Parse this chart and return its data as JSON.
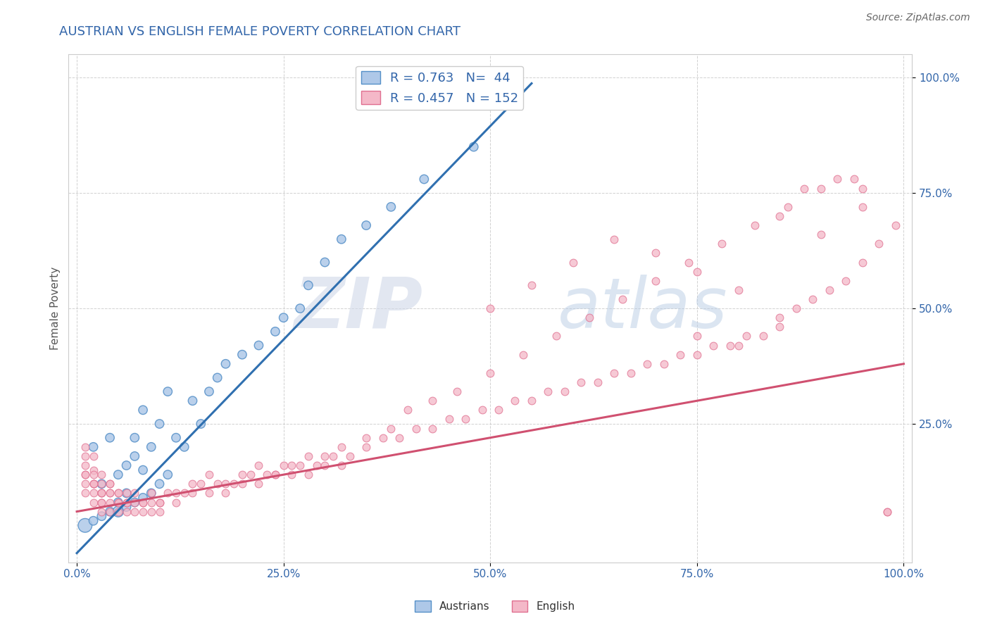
{
  "title": "AUSTRIAN VS ENGLISH FEMALE POVERTY CORRELATION CHART",
  "source_text": "Source: ZipAtlas.com",
  "ylabel": "Female Poverty",
  "watermark": "ZIPatlas",
  "legend_austrians": "Austrians",
  "legend_english": "English",
  "r_austrians": 0.763,
  "n_austrians": 44,
  "r_english": 0.457,
  "n_english": 152,
  "blue_fill": "#aec8e8",
  "blue_edge": "#5590c8",
  "pink_fill": "#f4b8c8",
  "pink_edge": "#e07090",
  "blue_line_color": "#3070b0",
  "pink_line_color": "#d05070",
  "title_color": "#3366aa",
  "source_color": "#666666",
  "axis_label_color": "#555555",
  "tick_color": "#3366aa",
  "background_color": "#ffffff",
  "grid_color": "#cccccc",
  "austrians_x": [
    0.01,
    0.02,
    0.02,
    0.03,
    0.03,
    0.04,
    0.04,
    0.05,
    0.05,
    0.05,
    0.06,
    0.06,
    0.06,
    0.07,
    0.07,
    0.07,
    0.08,
    0.08,
    0.08,
    0.09,
    0.09,
    0.1,
    0.1,
    0.11,
    0.11,
    0.12,
    0.13,
    0.14,
    0.15,
    0.16,
    0.17,
    0.18,
    0.2,
    0.22,
    0.24,
    0.25,
    0.27,
    0.28,
    0.3,
    0.32,
    0.35,
    0.38,
    0.42,
    0.48
  ],
  "austrians_y": [
    0.03,
    0.04,
    0.2,
    0.05,
    0.12,
    0.06,
    0.22,
    0.06,
    0.14,
    0.08,
    0.07,
    0.16,
    0.1,
    0.08,
    0.18,
    0.22,
    0.09,
    0.15,
    0.28,
    0.1,
    0.2,
    0.12,
    0.25,
    0.14,
    0.32,
    0.22,
    0.2,
    0.3,
    0.25,
    0.32,
    0.35,
    0.38,
    0.4,
    0.42,
    0.45,
    0.48,
    0.5,
    0.55,
    0.6,
    0.65,
    0.68,
    0.72,
    0.78,
    0.85
  ],
  "austrians_sizes": [
    200,
    80,
    80,
    80,
    80,
    80,
    80,
    120,
    80,
    80,
    80,
    80,
    80,
    80,
    80,
    80,
    80,
    80,
    80,
    80,
    80,
    80,
    80,
    80,
    80,
    80,
    80,
    80,
    80,
    80,
    80,
    80,
    80,
    80,
    80,
    80,
    80,
    80,
    80,
    80,
    80,
    80,
    80,
    80
  ],
  "english_x": [
    0.01,
    0.01,
    0.01,
    0.01,
    0.01,
    0.01,
    0.02,
    0.02,
    0.02,
    0.02,
    0.02,
    0.02,
    0.02,
    0.03,
    0.03,
    0.03,
    0.03,
    0.03,
    0.03,
    0.03,
    0.04,
    0.04,
    0.04,
    0.04,
    0.04,
    0.05,
    0.05,
    0.05,
    0.05,
    0.06,
    0.06,
    0.06,
    0.07,
    0.07,
    0.08,
    0.08,
    0.09,
    0.09,
    0.1,
    0.1,
    0.11,
    0.12,
    0.13,
    0.14,
    0.15,
    0.16,
    0.17,
    0.18,
    0.19,
    0.2,
    0.21,
    0.22,
    0.23,
    0.24,
    0.25,
    0.26,
    0.27,
    0.28,
    0.29,
    0.3,
    0.31,
    0.32,
    0.33,
    0.35,
    0.37,
    0.39,
    0.41,
    0.43,
    0.45,
    0.47,
    0.49,
    0.51,
    0.53,
    0.55,
    0.57,
    0.59,
    0.61,
    0.63,
    0.65,
    0.67,
    0.69,
    0.71,
    0.73,
    0.75,
    0.77,
    0.79,
    0.81,
    0.83,
    0.85,
    0.87,
    0.89,
    0.91,
    0.93,
    0.95,
    0.97,
    0.99,
    0.01,
    0.02,
    0.03,
    0.04,
    0.05,
    0.06,
    0.07,
    0.08,
    0.09,
    0.1,
    0.12,
    0.14,
    0.16,
    0.18,
    0.2,
    0.22,
    0.24,
    0.26,
    0.28,
    0.3,
    0.32,
    0.35,
    0.38,
    0.4,
    0.43,
    0.46,
    0.5,
    0.54,
    0.58,
    0.62,
    0.66,
    0.7,
    0.74,
    0.78,
    0.82,
    0.86,
    0.9,
    0.94,
    0.98,
    0.5,
    0.55,
    0.6,
    0.65,
    0.7,
    0.75,
    0.8,
    0.85,
    0.9,
    0.95,
    0.88,
    0.92,
    0.95,
    0.98,
    0.8,
    0.85,
    0.75
  ],
  "english_y": [
    0.18,
    0.2,
    0.12,
    0.14,
    0.16,
    0.1,
    0.15,
    0.12,
    0.18,
    0.1,
    0.14,
    0.08,
    0.12,
    0.1,
    0.14,
    0.08,
    0.12,
    0.06,
    0.1,
    0.08,
    0.1,
    0.08,
    0.12,
    0.06,
    0.1,
    0.08,
    0.1,
    0.06,
    0.08,
    0.08,
    0.06,
    0.1,
    0.08,
    0.06,
    0.08,
    0.06,
    0.08,
    0.06,
    0.08,
    0.06,
    0.1,
    0.08,
    0.1,
    0.1,
    0.12,
    0.1,
    0.12,
    0.1,
    0.12,
    0.12,
    0.14,
    0.12,
    0.14,
    0.14,
    0.16,
    0.14,
    0.16,
    0.14,
    0.16,
    0.16,
    0.18,
    0.16,
    0.18,
    0.2,
    0.22,
    0.22,
    0.24,
    0.24,
    0.26,
    0.26,
    0.28,
    0.28,
    0.3,
    0.3,
    0.32,
    0.32,
    0.34,
    0.34,
    0.36,
    0.36,
    0.38,
    0.38,
    0.4,
    0.4,
    0.42,
    0.42,
    0.44,
    0.44,
    0.48,
    0.5,
    0.52,
    0.54,
    0.56,
    0.6,
    0.64,
    0.68,
    0.14,
    0.12,
    0.1,
    0.12,
    0.1,
    0.08,
    0.1,
    0.08,
    0.1,
    0.08,
    0.1,
    0.12,
    0.14,
    0.12,
    0.14,
    0.16,
    0.14,
    0.16,
    0.18,
    0.18,
    0.2,
    0.22,
    0.24,
    0.28,
    0.3,
    0.32,
    0.36,
    0.4,
    0.44,
    0.48,
    0.52,
    0.56,
    0.6,
    0.64,
    0.68,
    0.72,
    0.76,
    0.78,
    0.06,
    0.5,
    0.55,
    0.6,
    0.65,
    0.62,
    0.58,
    0.54,
    0.7,
    0.66,
    0.72,
    0.76,
    0.78,
    0.76,
    0.06,
    0.42,
    0.46,
    0.44
  ],
  "xlim": [
    -0.01,
    1.01
  ],
  "ylim": [
    -0.05,
    1.05
  ],
  "xticks": [
    0.0,
    0.25,
    0.5,
    0.75,
    1.0
  ],
  "yticks": [
    0.25,
    0.5,
    0.75,
    1.0
  ],
  "xticklabels": [
    "0.0%",
    "25.0%",
    "50.0%",
    "75.0%",
    "100.0%"
  ],
  "yticklabels": [
    "25.0%",
    "50.0%",
    "75.0%",
    "100.0%"
  ],
  "blue_regression_x0": 0.0,
  "blue_regression_x1": 0.55,
  "pink_regression_x0": 0.0,
  "pink_regression_x1": 1.0,
  "blue_slope": 1.85,
  "blue_intercept": -0.03,
  "pink_slope": 0.32,
  "pink_intercept": 0.06
}
